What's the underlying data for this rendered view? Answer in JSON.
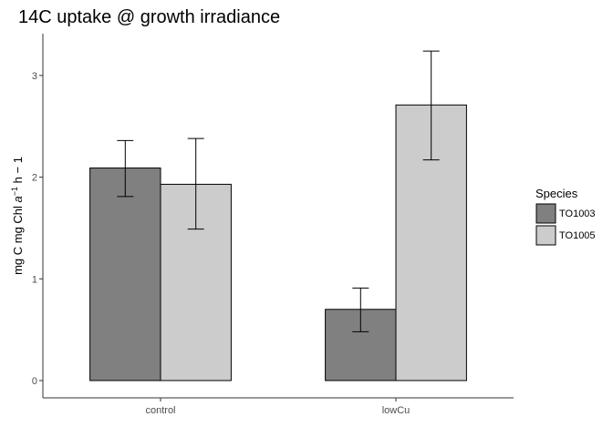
{
  "chart_data": {
    "type": "bar",
    "title": "14C uptake @  growth irradiance",
    "xlabel": "",
    "ylabel": {
      "prefix": "mg C mg Chl ",
      "italic": "a",
      "sup": "−1",
      "suffix": " h − 1"
    },
    "categories": [
      "control",
      "lowCu"
    ],
    "ylim": [
      0,
      3.4
    ],
    "yticks": [
      "0",
      "1",
      "2",
      "3"
    ],
    "grid": false,
    "legend_position": "right",
    "legend_title": "Species",
    "series": [
      {
        "name": "TO1003",
        "color": "#808080",
        "values": [
          2.09,
          0.7
        ],
        "err_low": [
          1.81,
          0.48
        ],
        "err_high": [
          2.36,
          0.91
        ]
      },
      {
        "name": "TO1005",
        "color": "#cccccc",
        "values": [
          1.93,
          2.71
        ],
        "err_low": [
          1.49,
          2.17
        ],
        "err_high": [
          2.38,
          3.24
        ]
      }
    ]
  }
}
